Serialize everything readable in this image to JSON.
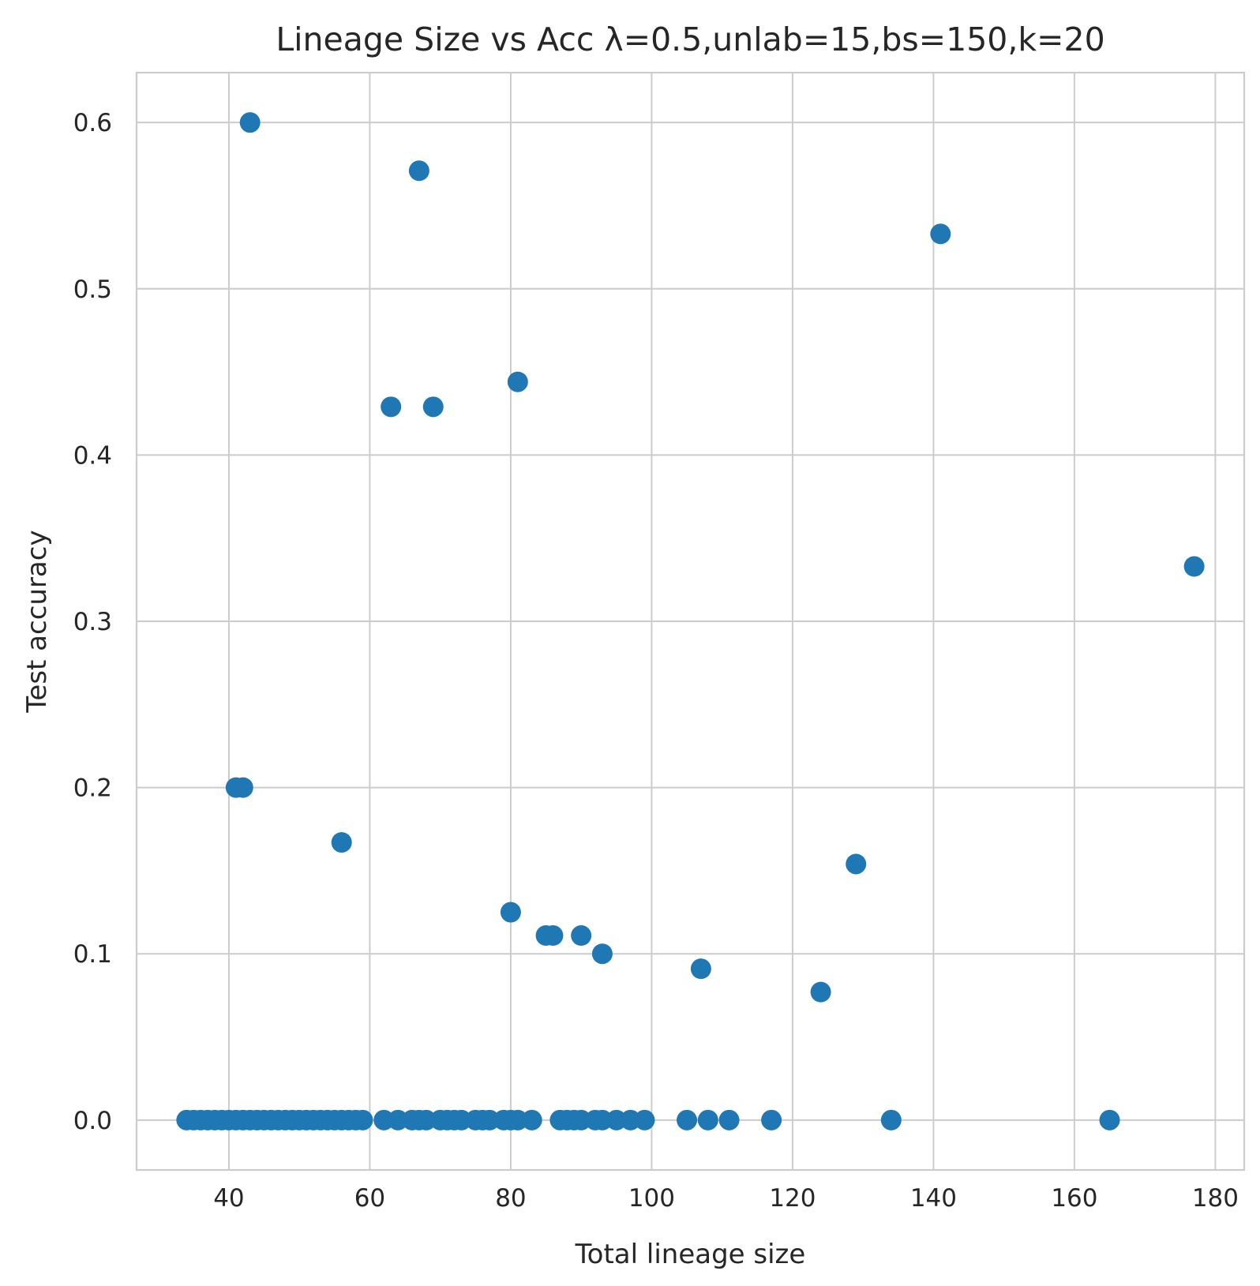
{
  "chart_data": {
    "type": "scatter",
    "title": "Lineage Size vs Acc λ=0.5,unlab=15,bs=150,k=20",
    "xlabel": "Total lineage size",
    "ylabel": "Test accuracy",
    "xlim": [
      26.9,
      184.1
    ],
    "ylim": [
      -0.03,
      0.63
    ],
    "xticks": [
      40,
      60,
      80,
      100,
      120,
      140,
      160,
      180
    ],
    "xtick_labels": [
      "40",
      "60",
      "80",
      "100",
      "120",
      "140",
      "160",
      "180"
    ],
    "yticks": [
      0.0,
      0.1,
      0.2,
      0.3,
      0.4,
      0.5,
      0.6
    ],
    "ytick_labels": [
      "0.0",
      "0.1",
      "0.2",
      "0.3",
      "0.4",
      "0.5",
      "0.6"
    ],
    "grid": true,
    "color": "#1f77b4",
    "series": [
      {
        "x": [
          43,
          67,
          141,
          63,
          69,
          81,
          177,
          41,
          42,
          56,
          129,
          80,
          85,
          86,
          90,
          93,
          107,
          124,
          34,
          35,
          36,
          37,
          38,
          39,
          40,
          41,
          42,
          43,
          44,
          45,
          46,
          47,
          48,
          49,
          50,
          51,
          52,
          53,
          54,
          55,
          56,
          57,
          58,
          59,
          62,
          64,
          66,
          67,
          68,
          70,
          71,
          72,
          73,
          75,
          76,
          77,
          79,
          80,
          81,
          83,
          87,
          88,
          89,
          90,
          92,
          93,
          95,
          97,
          99,
          105,
          108,
          111,
          117,
          134,
          165
        ],
        "y": [
          0.6,
          0.571,
          0.533,
          0.429,
          0.429,
          0.444,
          0.333,
          0.2,
          0.2,
          0.167,
          0.154,
          0.125,
          0.111,
          0.111,
          0.111,
          0.1,
          0.091,
          0.077,
          0,
          0,
          0,
          0,
          0,
          0,
          0,
          0,
          0,
          0,
          0,
          0,
          0,
          0,
          0,
          0,
          0,
          0,
          0,
          0,
          0,
          0,
          0,
          0,
          0,
          0,
          0,
          0,
          0,
          0,
          0,
          0,
          0,
          0,
          0,
          0,
          0,
          0,
          0,
          0,
          0,
          0,
          0,
          0,
          0,
          0,
          0,
          0,
          0,
          0,
          0,
          0,
          0,
          0,
          0,
          0,
          0
        ]
      }
    ]
  }
}
